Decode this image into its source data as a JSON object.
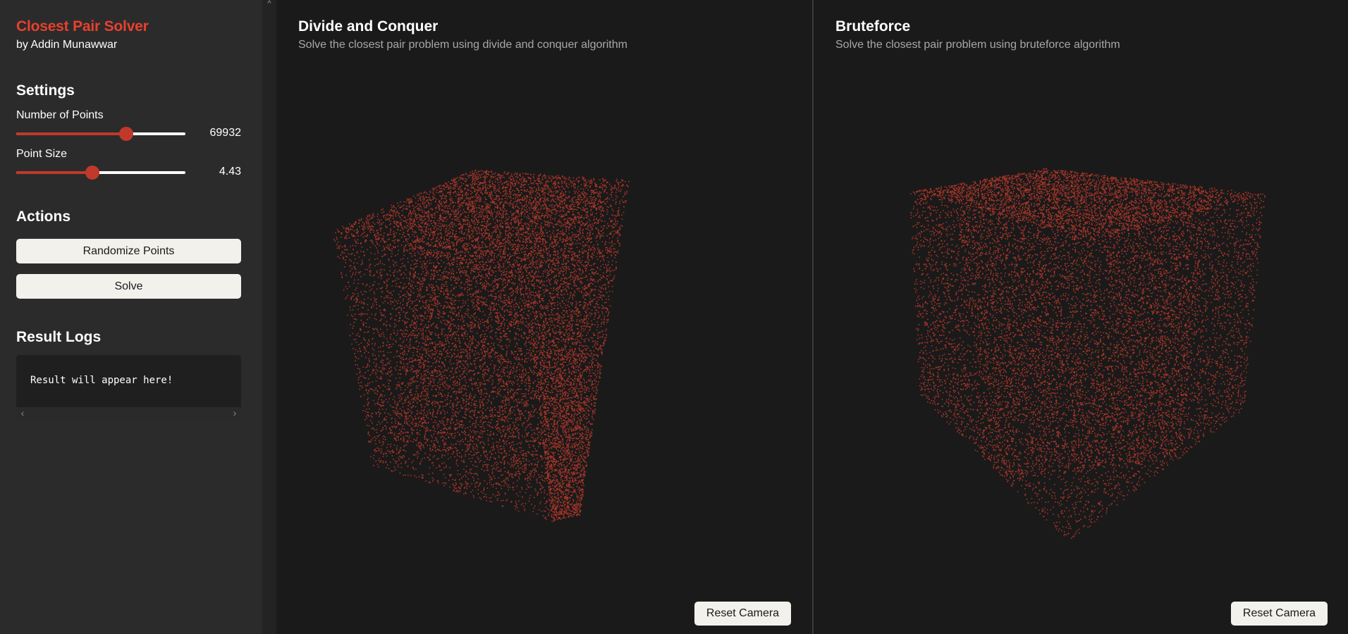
{
  "sidebar": {
    "title": "Closest Pair Solver",
    "author": "by Addin Munawwar",
    "settings": {
      "heading": "Settings",
      "num_points": {
        "label": "Number of Points",
        "value": "69932",
        "fraction": 0.65
      },
      "point_size": {
        "label": "Point Size",
        "value": "4.43",
        "fraction": 0.45
      }
    },
    "actions": {
      "heading": "Actions",
      "randomize_label": "Randomize Points",
      "solve_label": "Solve"
    },
    "logs": {
      "heading": "Result Logs",
      "text": "Result will appear here!"
    }
  },
  "panels": {
    "divide": {
      "title": "Divide and Conquer",
      "subtitle": "Solve the closest pair problem using divide and conquer algorithm",
      "reset_label": "Reset Camera"
    },
    "brute": {
      "title": "Bruteforce",
      "subtitle": "Solve the closest pair problem using bruteforce algorithm",
      "reset_label": "Reset Camera"
    }
  },
  "colors": {
    "accent": "#e8402f",
    "point": "#c0392b",
    "background": "#1a1a1a",
    "sidebar": "#2b2b2b"
  }
}
